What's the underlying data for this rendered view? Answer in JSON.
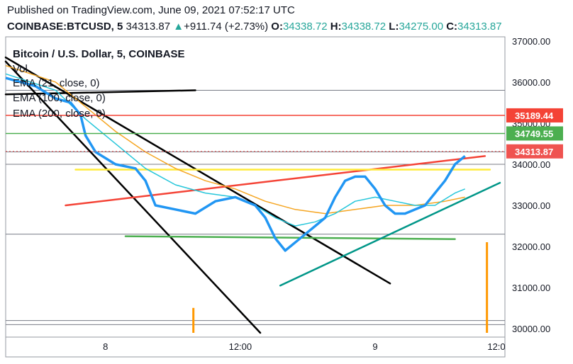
{
  "header": {
    "published": "Published on TradingView.com, June 09, 2021 07:52:17 UTC",
    "symbol": "COINBASE:BTCUSD, 5",
    "last": "34313.87",
    "change_icon": "up-triangle-icon",
    "change_arrow": "▲",
    "change": "+911.74 (+2.73%)",
    "o_key": "O:",
    "o_val": "34338.72",
    "h_key": "H:",
    "h_val": "34338.72",
    "l_key": "L:",
    "l_val": "34275.00",
    "c_key": "C:",
    "c_val": "34313.87"
  },
  "legend": {
    "title": "Bitcoin / U.S. Dollar, 5, COINBASE",
    "vol": "Vol",
    "ema1": "EMA (21, close, 0)",
    "ema2": "EMA (100, close, 0)",
    "ema3": "EMA (200, close, 0)"
  },
  "colors": {
    "up": "#26a69a",
    "down": "#ef5350",
    "ema21": "#2196f3",
    "ema100": "#26c6da",
    "ema200": "#f5a623",
    "trend_black": "#000000",
    "trend_red": "#f44336",
    "trend_yellow": "#ffeb3b",
    "trend_green": "#009688",
    "support_green": "#4caf50",
    "volume_orange": "#ff9800"
  },
  "chart_data": {
    "type": "line",
    "title": "Bitcoin / U.S. Dollar, 5, COINBASE",
    "xlabel": "",
    "ylabel": "",
    "ylim": [
      29900,
      37100
    ],
    "xlim": [
      0,
      50
    ],
    "x_ticks": [
      {
        "x": 10,
        "label": "8"
      },
      {
        "x": 23.5,
        "label": "12:00"
      },
      {
        "x": 37,
        "label": "9"
      },
      {
        "x": 50.5,
        "label": "12:0"
      }
    ],
    "y_ticks": [
      30000,
      31000,
      32000,
      33000,
      34000,
      35000,
      36000,
      37000
    ],
    "y_tick_labels": [
      "30000.00",
      "31000.00",
      "32000.00",
      "33000.00",
      "34000.00",
      "35000.00",
      "36000.00",
      "37000.00"
    ],
    "price_tags": [
      {
        "value": 35189.44,
        "label": "35189.44",
        "color": "#f44336"
      },
      {
        "value": 34749.55,
        "label": "34749.55",
        "color": "#4caf50"
      },
      {
        "value": 34313.87,
        "label": "34313.87",
        "color": "#ef5350"
      }
    ],
    "series": [
      {
        "name": "EMA (21, close, 0)",
        "color": "#2196f3",
        "x": [
          0,
          3,
          5,
          6.5,
          7.5,
          8,
          9,
          11,
          13,
          14,
          15,
          17,
          19,
          21,
          23,
          24,
          25,
          26,
          27,
          28,
          29,
          30,
          31,
          32,
          33,
          34,
          35,
          36,
          37,
          38,
          39,
          40,
          41,
          42,
          43,
          44,
          45,
          46
        ],
        "y": [
          36100,
          35900,
          35600,
          35500,
          35200,
          34700,
          34300,
          34000,
          33900,
          33600,
          33000,
          32900,
          32800,
          33100,
          33200,
          33100,
          33000,
          32700,
          32200,
          31900,
          32100,
          32300,
          32500,
          32700,
          33200,
          33600,
          33700,
          33700,
          33400,
          33000,
          32800,
          32800,
          32900,
          33000,
          33300,
          33600,
          34000,
          34200
        ]
      },
      {
        "name": "EMA (100, close, 0)",
        "color": "#26c6da",
        "x": [
          0,
          5,
          8,
          11,
          14,
          17,
          20,
          23,
          25,
          27,
          29,
          31,
          33,
          35,
          37,
          39,
          41,
          43,
          45,
          46
        ],
        "y": [
          36200,
          35800,
          35100,
          34500,
          33900,
          33500,
          33300,
          33200,
          33000,
          32700,
          32500,
          32600,
          32800,
          33100,
          33200,
          33100,
          33000,
          33000,
          33300,
          33400
        ]
      },
      {
        "name": "EMA (200, close, 0)",
        "color": "#f5a623",
        "x": [
          0,
          5,
          8,
          11,
          14,
          17,
          20,
          23,
          26,
          29,
          32,
          35,
          38,
          41,
          44,
          46
        ],
        "y": [
          36400,
          36000,
          35400,
          34800,
          34300,
          33900,
          33600,
          33400,
          33100,
          32900,
          32800,
          32900,
          33000,
          33000,
          33100,
          33200
        ]
      }
    ],
    "trendlines": [
      {
        "color": "#000000",
        "x": [
          0,
          25.5
        ],
        "y": [
          36500,
          29900
        ]
      },
      {
        "color": "#000000",
        "x": [
          0,
          38.5
        ],
        "y": [
          36600,
          31100
        ]
      },
      {
        "color": "#000000",
        "x": [
          0,
          19
        ],
        "y": [
          35700,
          35800
        ]
      },
      {
        "color": "#f44336",
        "x": [
          6,
          48
        ],
        "y": [
          33000,
          34200
        ]
      },
      {
        "color": "#ffeb3b",
        "x": [
          7,
          48.5
        ],
        "y": [
          33870,
          33870
        ]
      },
      {
        "color": "#4caf50",
        "x": [
          12,
          45
        ],
        "y": [
          32250,
          32180
        ]
      },
      {
        "color": "#009688",
        "x": [
          27.5,
          49.5
        ],
        "y": [
          31050,
          33550
        ]
      }
    ],
    "horizontal_levels": [
      35800,
      34300,
      34000,
      32300,
      30200,
      30100
    ],
    "volume_bars": [
      {
        "x": 18.8,
        "value": 0.22
      },
      {
        "x": 48.2,
        "value": 0.8
      }
    ]
  }
}
